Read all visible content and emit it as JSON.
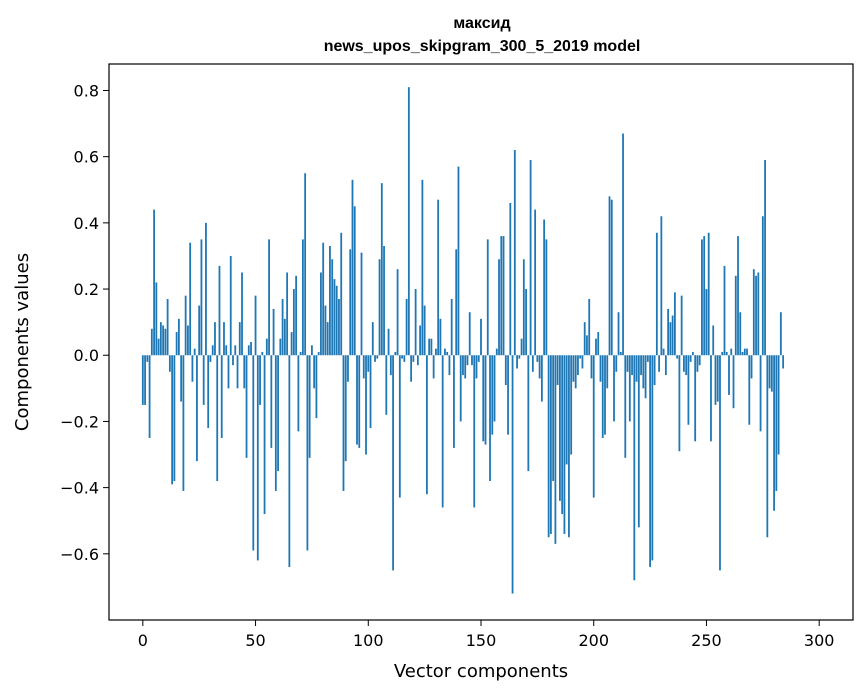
{
  "chart_data": {
    "type": "bar",
    "title_line1": "максид",
    "title_line2": "news_upos_skipgram_300_5_2019 model",
    "xlabel": "Vector components",
    "ylabel": "Components values",
    "xlim": [
      -15,
      315
    ],
    "ylim": [
      -0.8,
      0.88
    ],
    "xticks": [
      0,
      50,
      100,
      150,
      200,
      250,
      300
    ],
    "xtick_labels": [
      "0",
      "50",
      "100",
      "150",
      "200",
      "250",
      "300"
    ],
    "yticks": [
      -0.6,
      -0.4,
      -0.2,
      0.0,
      0.2,
      0.4,
      0.6,
      0.8
    ],
    "ytick_labels": [
      "−0.6",
      "−0.4",
      "−0.2",
      "0.0",
      "0.2",
      "0.4",
      "0.6",
      "0.8"
    ],
    "grid": false,
    "color": "#1f77b4",
    "x_start": 0,
    "values": [
      -0.15,
      -0.15,
      -0.02,
      -0.25,
      0.08,
      0.44,
      0.22,
      0.05,
      0.1,
      0.09,
      0.08,
      0.17,
      -0.05,
      -0.39,
      -0.38,
      0.07,
      0.11,
      -0.14,
      -0.41,
      0.18,
      0.09,
      0.34,
      -0.08,
      0.02,
      -0.32,
      0.15,
      0.35,
      -0.15,
      0.4,
      -0.22,
      -0.02,
      0.03,
      0.1,
      -0.38,
      0.27,
      -0.25,
      0.1,
      0.03,
      -0.1,
      0.3,
      -0.03,
      0.03,
      -0.1,
      0.1,
      0.25,
      -0.1,
      -0.31,
      0.03,
      0.04,
      -0.59,
      0.18,
      -0.62,
      -0.15,
      0.01,
      -0.48,
      0.05,
      0.35,
      -0.28,
      0.14,
      -0.41,
      -0.35,
      0.05,
      0.17,
      0.11,
      0.25,
      -0.64,
      0.07,
      0.2,
      0.24,
      -0.23,
      0.01,
      0.35,
      0.55,
      -0.59,
      -0.31,
      0.03,
      -0.1,
      -0.19,
      0.01,
      0.25,
      0.34,
      0.15,
      0.1,
      0.33,
      0.29,
      0.23,
      0.21,
      0.17,
      0.37,
      -0.41,
      -0.32,
      -0.08,
      0.32,
      0.53,
      0.45,
      -0.27,
      -0.28,
      0.31,
      -0.07,
      -0.3,
      -0.05,
      -0.22,
      0.1,
      -0.02,
      -0.01,
      0.29,
      0.52,
      0.33,
      -0.18,
      0.08,
      -0.06,
      -0.65,
      0.01,
      0.26,
      -0.43,
      -0.01,
      -0.02,
      0.17,
      0.81,
      -0.08,
      -0.02,
      0.2,
      -0.03,
      0.09,
      0.53,
      0.15,
      -0.42,
      0.05,
      0.05,
      -0.07,
      0.02,
      0.47,
      0.11,
      -0.46,
      0.02,
      0.01,
      -0.06,
      0.17,
      -0.28,
      0.32,
      0.57,
      -0.2,
      -0.06,
      -0.07,
      -0.03,
      0.13,
      -0.03,
      -0.46,
      -0.07,
      -0.02,
      0.11,
      -0.26,
      -0.27,
      0.35,
      -0.38,
      -0.24,
      -0.2,
      0.02,
      0.29,
      0.36,
      0.36,
      -0.09,
      -0.24,
      0.46,
      -0.72,
      0.62,
      -0.04,
      -0.01,
      0.05,
      0.29,
      0.2,
      -0.35,
      0.59,
      -0.05,
      0.44,
      -0.02,
      -0.07,
      -0.14,
      0.41,
      0.35,
      -0.55,
      -0.54,
      -0.38,
      -0.57,
      -0.09,
      -0.44,
      -0.48,
      -0.54,
      -0.33,
      -0.55,
      -0.3,
      -0.08,
      -0.1,
      -0.06,
      -0.01,
      -0.04,
      0.1,
      0.06,
      0.17,
      -0.07,
      -0.43,
      0.05,
      0.07,
      -0.08,
      -0.25,
      -0.24,
      -0.1,
      0.48,
      0.47,
      -0.2,
      -0.05,
      0.13,
      0.01,
      0.67,
      -0.31,
      -0.05,
      -0.2,
      -0.06,
      -0.68,
      -0.08,
      -0.52,
      -0.06,
      -0.1,
      -0.13,
      -0.02,
      -0.64,
      -0.62,
      -0.09,
      0.37,
      -0.05,
      0.42,
      0.02,
      -0.06,
      0.14,
      0.1,
      0.12,
      0.19,
      -0.01,
      -0.29,
      0.18,
      -0.05,
      -0.06,
      -0.21,
      -0.02,
      0.01,
      -0.26,
      -0.05,
      -0.03,
      0.35,
      0.36,
      0.2,
      0.37,
      -0.26,
      0.09,
      -0.15,
      -0.14,
      -0.65,
      0.01,
      0.27,
      0.01,
      -0.12,
      0.02,
      -0.16,
      0.24,
      0.36,
      0.13,
      0.01,
      0.02,
      0.02,
      -0.21,
      -0.07,
      0.26,
      0.24,
      0.25,
      -0.23,
      0.42,
      0.59,
      -0.55,
      -0.1,
      -0.11,
      -0.47,
      -0.41,
      -0.3,
      0.13,
      -0.04
    ]
  }
}
